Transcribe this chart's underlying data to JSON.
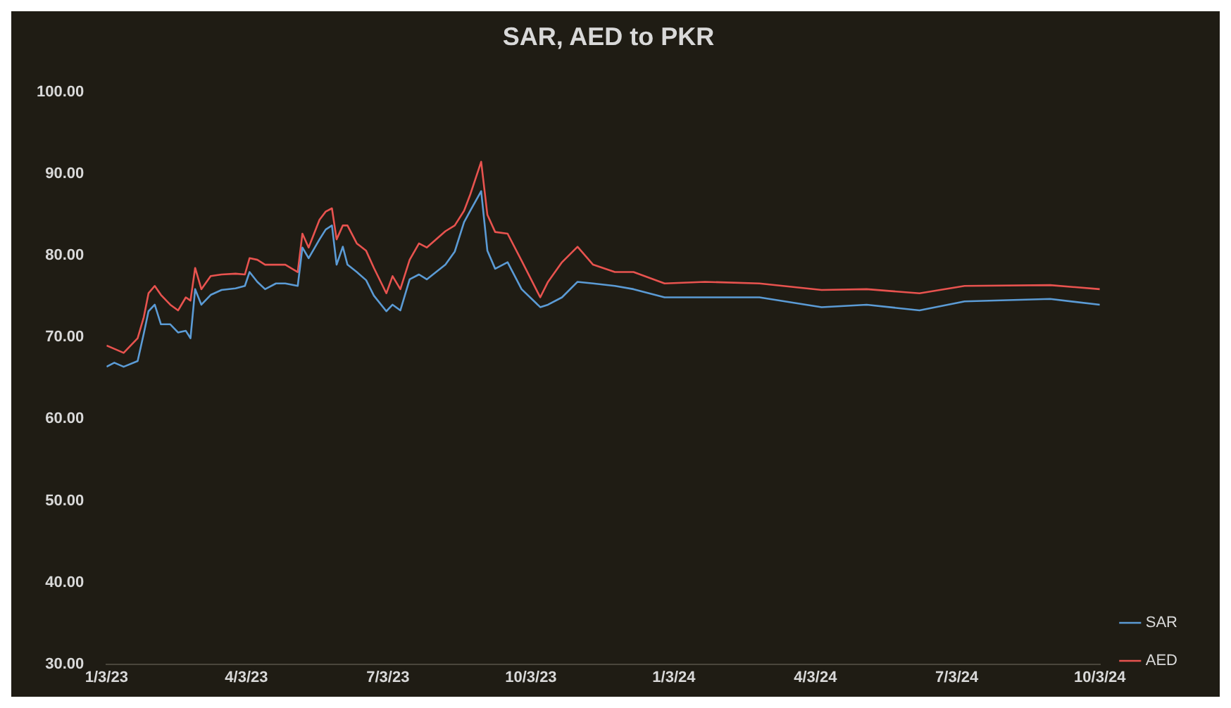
{
  "chart_data": {
    "type": "line",
    "title": "SAR, AED to PKR",
    "x": [
      "2023-01-03",
      "2023-01-08",
      "2023-01-14",
      "2023-01-23",
      "2023-01-27",
      "2023-01-30",
      "2023-02-03",
      "2023-02-07",
      "2023-02-13",
      "2023-02-18",
      "2023-02-23",
      "2023-02-26",
      "2023-03-01",
      "2023-03-05",
      "2023-03-11",
      "2023-03-18",
      "2023-03-27",
      "2023-04-02",
      "2023-04-05",
      "2023-04-10",
      "2023-04-15",
      "2023-04-22",
      "2023-04-28",
      "2023-05-06",
      "2023-05-09",
      "2023-05-13",
      "2023-05-20",
      "2023-05-24",
      "2023-05-28",
      "2023-05-31",
      "2023-06-04",
      "2023-06-07",
      "2023-06-13",
      "2023-06-19",
      "2023-06-24",
      "2023-07-02",
      "2023-07-06",
      "2023-07-11",
      "2023-07-17",
      "2023-07-23",
      "2023-07-28",
      "2023-08-09",
      "2023-08-15",
      "2023-08-21",
      "2023-08-25",
      "2023-09-01",
      "2023-09-05",
      "2023-09-10",
      "2023-09-18",
      "2023-09-27",
      "2023-10-09",
      "2023-10-14",
      "2023-10-23",
      "2023-11-02",
      "2023-11-12",
      "2023-11-26",
      "2023-12-08",
      "2023-12-28",
      "2024-01-23",
      "2024-02-27",
      "2024-04-07",
      "2024-05-06",
      "2024-06-09",
      "2024-07-08",
      "2024-09-01",
      "2024-10-03"
    ],
    "series": [
      {
        "name": "SAR",
        "color": "#5b9bd5",
        "values": [
          66.4,
          66.9,
          66.4,
          67.1,
          70.5,
          73.2,
          74.0,
          71.6,
          71.6,
          70.6,
          70.8,
          69.9,
          75.9,
          74.0,
          75.2,
          75.8,
          76.0,
          76.3,
          78.0,
          76.8,
          75.9,
          76.6,
          76.6,
          76.3,
          81.0,
          79.7,
          82.0,
          83.2,
          83.7,
          78.9,
          81.1,
          78.9,
          78.0,
          77.0,
          75.1,
          73.2,
          74.0,
          73.3,
          77.1,
          77.7,
          77.1,
          78.9,
          80.5,
          84.1,
          85.5,
          87.9,
          80.6,
          78.4,
          79.2,
          75.9,
          73.7,
          74.0,
          74.9,
          76.8,
          76.6,
          76.3,
          75.9,
          74.9,
          74.9,
          74.9,
          73.7,
          74.0,
          73.3,
          74.4,
          74.7,
          74.0
        ]
      },
      {
        "name": "AED",
        "color": "#e8534f",
        "values": [
          69.0,
          68.6,
          68.1,
          69.9,
          72.5,
          75.4,
          76.3,
          75.2,
          74.0,
          73.3,
          74.9,
          74.5,
          78.5,
          75.9,
          77.5,
          77.7,
          77.8,
          77.7,
          79.7,
          79.5,
          78.9,
          78.9,
          78.9,
          78.0,
          82.7,
          81.0,
          84.4,
          85.4,
          85.8,
          82.0,
          83.7,
          83.7,
          81.5,
          80.6,
          78.5,
          75.4,
          77.5,
          75.9,
          79.5,
          81.5,
          81.0,
          83.0,
          83.7,
          85.5,
          87.5,
          91.5,
          85.0,
          82.9,
          82.7,
          79.4,
          74.9,
          76.8,
          79.2,
          81.1,
          78.9,
          78.0,
          78.0,
          76.6,
          76.8,
          76.6,
          75.8,
          75.9,
          75.4,
          76.3,
          76.4,
          75.9
        ]
      }
    ],
    "xlim": [
      "2023-01-03",
      "2024-10-03"
    ],
    "xticks": [
      {
        "value": "2023-01-03",
        "label": "1/3/23"
      },
      {
        "value": "2023-04-03",
        "label": "4/3/23"
      },
      {
        "value": "2023-07-03",
        "label": "7/3/23"
      },
      {
        "value": "2023-10-03",
        "label": "10/3/23"
      },
      {
        "value": "2024-01-03",
        "label": "1/3/24"
      },
      {
        "value": "2024-04-03",
        "label": "4/3/24"
      },
      {
        "value": "2024-07-03",
        "label": "7/3/24"
      },
      {
        "value": "2024-10-03",
        "label": "10/3/24"
      }
    ],
    "ylim": [
      30,
      100
    ],
    "yticks": [
      {
        "value": 30,
        "label": "30.00"
      },
      {
        "value": 40,
        "label": "40.00"
      },
      {
        "value": 50,
        "label": "50.00"
      },
      {
        "value": 60,
        "label": "60.00"
      },
      {
        "value": 70,
        "label": "70.00"
      },
      {
        "value": 80,
        "label": "80.00"
      },
      {
        "value": 90,
        "label": "90.00"
      },
      {
        "value": 100,
        "label": "100.00"
      }
    ],
    "grid": false,
    "legend": "right",
    "marker": "none",
    "line_style": "solid"
  }
}
